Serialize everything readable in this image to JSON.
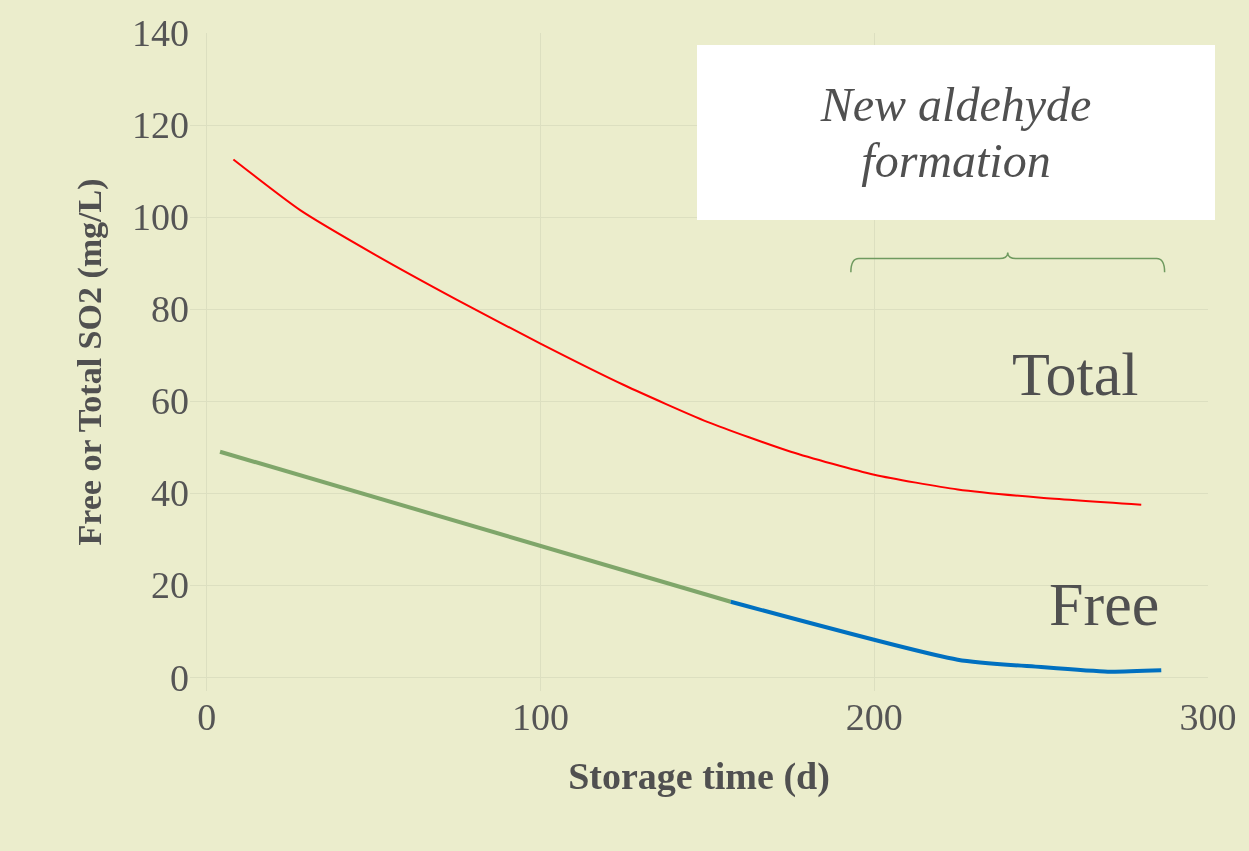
{
  "chart_data": {
    "type": "line",
    "xlabel": "Storage time (d)",
    "ylabel": "Free or Total SO2 (mg/L)",
    "series": [
      {
        "name": "Total",
        "color": "#ff0000",
        "x": [
          8,
          28,
          50,
          75,
          100,
          125,
          150,
          175,
          200,
          225,
          250,
          280
        ],
        "values": [
          112.5,
          101.5,
          92,
          82,
          72.5,
          63.5,
          55.5,
          49,
          44,
          40.8,
          39,
          37.5
        ]
      },
      {
        "color": "#7fa66a",
        "x": [
          4,
          157
        ],
        "values": [
          49,
          16.4
        ]
      },
      {
        "name": "Free",
        "color": "#0070c0",
        "x": [
          157,
          225,
          250,
          270,
          286
        ],
        "values": [
          16.4,
          3.8,
          2.2,
          1.2,
          1.5
        ]
      }
    ],
    "annotations": [
      "New aldehyde formation"
    ],
    "xlim": [
      -5,
      300
    ],
    "ylim": [
      -3,
      140
    ],
    "xticks": [
      0,
      100,
      200,
      300
    ],
    "yticks": [
      0,
      20,
      40,
      60,
      80,
      100,
      120,
      140
    ],
    "grid": true,
    "legend": false,
    "marker": "none",
    "line_style": "solid"
  }
}
